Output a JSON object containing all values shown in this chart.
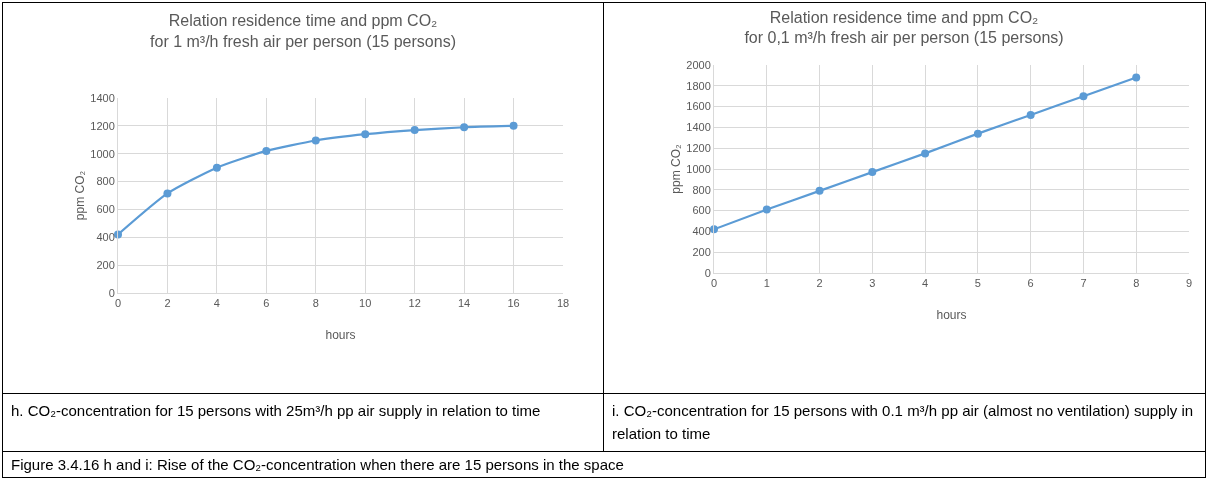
{
  "chart_data": [
    {
      "type": "line",
      "title": "Relation residence time and ppm CO₂\nfor 1 m³/h fresh air per person (15 persons)",
      "xlabel": "hours",
      "ylabel": "ppm CO₂",
      "x": [
        0,
        2,
        4,
        6,
        8,
        10,
        12,
        14,
        16
      ],
      "series": [
        {
          "color": "#5b9bd5",
          "values": [
            420,
            715,
            900,
            1020,
            1095,
            1140,
            1170,
            1190,
            1200
          ]
        }
      ],
      "xlim": [
        0,
        18
      ],
      "xticks": [
        0,
        2,
        4,
        6,
        8,
        10,
        12,
        14,
        16,
        18
      ],
      "ylim": [
        0,
        1400
      ],
      "yticks": [
        0,
        200,
        400,
        600,
        800,
        1000,
        1200,
        1400
      ],
      "grid": true,
      "marker": "circle",
      "line_style": "solid",
      "annotations": [
        "h. CO₂-concentration for 15 persons with 25m³/h pp air supply in relation to time",
        "Figure 3.4.16 h and i: Rise of the CO₂-concentration when there are 15 persons in the space"
      ]
    },
    {
      "type": "line",
      "title": "Relation residence time and ppm CO₂\nfor 0,1 m³/h fresh air per person (15 persons)",
      "xlabel": "hours",
      "ylabel": "ppm CO₂",
      "x": [
        0,
        1,
        2,
        3,
        4,
        5,
        6,
        7,
        8
      ],
      "series": [
        {
          "color": "#5b9bd5",
          "values": [
            420,
            610,
            790,
            970,
            1150,
            1340,
            1520,
            1700,
            1880
          ]
        }
      ],
      "xlim": [
        0,
        9
      ],
      "xticks": [
        0,
        1,
        2,
        3,
        4,
        5,
        6,
        7,
        8,
        9
      ],
      "ylim": [
        0,
        2000
      ],
      "yticks": [
        0,
        200,
        400,
        600,
        800,
        1000,
        1200,
        1400,
        1600,
        1800,
        2000
      ],
      "grid": true,
      "marker": "circle",
      "line_style": "solid",
      "annotations": [
        "i. CO₂-concentration for 15 persons with 0.1 m³/h pp air (almost no ventilation) supply in relation to time"
      ]
    }
  ]
}
